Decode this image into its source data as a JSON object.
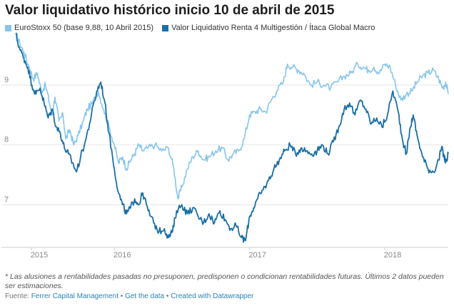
{
  "title": "Valor liquidativo histórico inicio 10 de abril de 2015",
  "note": "* Las alusiones a rentabilidades pasadas no presuponen, predisponen o condicionan rentabilidades futuras. Últimos 2 datos pueden ser estimaciones.",
  "source": {
    "label": "Fuente:",
    "name": "Ferrer Capital Management",
    "sep": "•",
    "get_data": "Get the data",
    "created": "Created with Datawrapper"
  },
  "chart_data": {
    "type": "line",
    "grid": "horizontal",
    "legend_position": "top-left",
    "ylim": [
      6.3,
      9.8
    ],
    "y_ticks": [
      7,
      8,
      9
    ],
    "x_ticks": [
      {
        "label": "2015",
        "x": 2015.25
      },
      {
        "label": "2016",
        "x": 2016.0
      },
      {
        "label": "2017",
        "x": 2017.0
      },
      {
        "label": "2018",
        "x": 2018.0
      }
    ],
    "xlim": [
      2015.27,
      2018.47
    ],
    "series": [
      {
        "name": "EuroStoxx 50 (base 9,88, 10 Abril 2015)",
        "color": "#86c5ec",
        "points": [
          [
            2015.27,
            9.85
          ],
          [
            2015.3,
            9.7
          ],
          [
            2015.33,
            9.55
          ],
          [
            2015.37,
            9.3
          ],
          [
            2015.4,
            9.1
          ],
          [
            2015.43,
            9.2
          ],
          [
            2015.46,
            8.9
          ],
          [
            2015.49,
            9.0
          ],
          [
            2015.52,
            8.7
          ],
          [
            2015.54,
            8.5
          ],
          [
            2015.56,
            8.8
          ],
          [
            2015.59,
            8.4
          ],
          [
            2015.62,
            8.5
          ],
          [
            2015.64,
            8.1
          ],
          [
            2015.67,
            8.25
          ],
          [
            2015.7,
            8.0
          ],
          [
            2015.73,
            8.15
          ],
          [
            2015.77,
            8.4
          ],
          [
            2015.8,
            8.6
          ],
          [
            2015.84,
            8.7
          ],
          [
            2015.88,
            8.9
          ],
          [
            2015.92,
            8.6
          ],
          [
            2015.96,
            8.3
          ],
          [
            2016.0,
            8.0
          ],
          [
            2016.03,
            7.7
          ],
          [
            2016.06,
            7.8
          ],
          [
            2016.09,
            7.6
          ],
          [
            2016.12,
            7.75
          ],
          [
            2016.15,
            7.85
          ],
          [
            2016.18,
            8.0
          ],
          [
            2016.21,
            7.9
          ],
          [
            2016.25,
            7.95
          ],
          [
            2016.3,
            8.0
          ],
          [
            2016.35,
            7.9
          ],
          [
            2016.4,
            7.95
          ],
          [
            2016.44,
            7.6
          ],
          [
            2016.47,
            7.1
          ],
          [
            2016.5,
            7.3
          ],
          [
            2016.54,
            7.6
          ],
          [
            2016.58,
            7.8
          ],
          [
            2016.62,
            7.9
          ],
          [
            2016.66,
            7.75
          ],
          [
            2016.7,
            7.8
          ],
          [
            2016.75,
            7.9
          ],
          [
            2016.8,
            7.95
          ],
          [
            2016.84,
            7.75
          ],
          [
            2016.88,
            7.85
          ],
          [
            2016.92,
            7.9
          ],
          [
            2016.96,
            8.1
          ],
          [
            2017.0,
            8.5
          ],
          [
            2017.04,
            8.55
          ],
          [
            2017.08,
            8.6
          ],
          [
            2017.12,
            8.55
          ],
          [
            2017.16,
            8.75
          ],
          [
            2017.2,
            8.9
          ],
          [
            2017.25,
            9.05
          ],
          [
            2017.28,
            9.35
          ],
          [
            2017.32,
            9.3
          ],
          [
            2017.36,
            9.25
          ],
          [
            2017.4,
            9.2
          ],
          [
            2017.45,
            9.0
          ],
          [
            2017.5,
            9.05
          ],
          [
            2017.55,
            9.0
          ],
          [
            2017.6,
            8.95
          ],
          [
            2017.65,
            9.05
          ],
          [
            2017.7,
            9.15
          ],
          [
            2017.75,
            9.2
          ],
          [
            2017.8,
            9.35
          ],
          [
            2017.84,
            9.3
          ],
          [
            2017.88,
            9.25
          ],
          [
            2017.92,
            9.3
          ],
          [
            2017.96,
            9.2
          ],
          [
            2018.0,
            9.35
          ],
          [
            2018.04,
            9.3
          ],
          [
            2018.08,
            9.0
          ],
          [
            2018.12,
            8.75
          ],
          [
            2018.16,
            8.85
          ],
          [
            2018.2,
            8.9
          ],
          [
            2018.24,
            9.05
          ],
          [
            2018.28,
            9.15
          ],
          [
            2018.32,
            9.2
          ],
          [
            2018.36,
            9.25
          ],
          [
            2018.4,
            9.1
          ],
          [
            2018.43,
            8.95
          ],
          [
            2018.45,
            9.05
          ],
          [
            2018.47,
            8.85
          ]
        ]
      },
      {
        "name": "Valor Liquidativo Renta 4 Multigestión / Ítaca Global Macro",
        "color": "#1a6fa6",
        "points": [
          [
            2015.27,
            9.85
          ],
          [
            2015.3,
            9.6
          ],
          [
            2015.33,
            9.45
          ],
          [
            2015.36,
            9.3
          ],
          [
            2015.39,
            9.0
          ],
          [
            2015.42,
            8.85
          ],
          [
            2015.45,
            8.95
          ],
          [
            2015.48,
            8.7
          ],
          [
            2015.51,
            8.45
          ],
          [
            2015.54,
            8.6
          ],
          [
            2015.57,
            8.3
          ],
          [
            2015.6,
            8.2
          ],
          [
            2015.63,
            7.95
          ],
          [
            2015.66,
            7.85
          ],
          [
            2015.69,
            7.7
          ],
          [
            2015.72,
            7.55
          ],
          [
            2015.75,
            7.8
          ],
          [
            2015.79,
            8.1
          ],
          [
            2015.83,
            8.5
          ],
          [
            2015.87,
            8.9
          ],
          [
            2015.9,
            9.05
          ],
          [
            2015.93,
            8.7
          ],
          [
            2015.96,
            8.2
          ],
          [
            2016.0,
            7.6
          ],
          [
            2016.03,
            7.2
          ],
          [
            2016.06,
            7.0
          ],
          [
            2016.09,
            6.85
          ],
          [
            2016.12,
            6.95
          ],
          [
            2016.15,
            7.1
          ],
          [
            2016.18,
            7.0
          ],
          [
            2016.21,
            7.2
          ],
          [
            2016.25,
            6.9
          ],
          [
            2016.29,
            6.7
          ],
          [
            2016.33,
            6.55
          ],
          [
            2016.37,
            6.6
          ],
          [
            2016.4,
            6.45
          ],
          [
            2016.43,
            6.55
          ],
          [
            2016.46,
            6.9
          ],
          [
            2016.5,
            7.0
          ],
          [
            2016.54,
            6.85
          ],
          [
            2016.58,
            6.95
          ],
          [
            2016.62,
            6.8
          ],
          [
            2016.66,
            6.7
          ],
          [
            2016.7,
            6.85
          ],
          [
            2016.74,
            6.7
          ],
          [
            2016.78,
            6.9
          ],
          [
            2016.82,
            6.75
          ],
          [
            2016.86,
            6.6
          ],
          [
            2016.9,
            6.65
          ],
          [
            2016.94,
            6.45
          ],
          [
            2016.97,
            6.4
          ],
          [
            2017.0,
            6.8
          ],
          [
            2017.03,
            6.95
          ],
          [
            2017.06,
            7.1
          ],
          [
            2017.1,
            7.25
          ],
          [
            2017.14,
            7.4
          ],
          [
            2017.18,
            7.6
          ],
          [
            2017.22,
            7.75
          ],
          [
            2017.26,
            7.9
          ],
          [
            2017.3,
            8.0
          ],
          [
            2017.34,
            7.85
          ],
          [
            2017.38,
            7.95
          ],
          [
            2017.42,
            7.9
          ],
          [
            2017.46,
            7.85
          ],
          [
            2017.5,
            7.9
          ],
          [
            2017.54,
            8.0
          ],
          [
            2017.58,
            7.85
          ],
          [
            2017.62,
            8.05
          ],
          [
            2017.66,
            8.3
          ],
          [
            2017.7,
            8.6
          ],
          [
            2017.74,
            8.7
          ],
          [
            2017.78,
            8.5
          ],
          [
            2017.82,
            8.75
          ],
          [
            2017.86,
            8.6
          ],
          [
            2017.9,
            8.35
          ],
          [
            2017.94,
            8.45
          ],
          [
            2017.98,
            8.3
          ],
          [
            2018.02,
            8.5
          ],
          [
            2018.06,
            8.9
          ],
          [
            2018.1,
            8.55
          ],
          [
            2018.13,
            8.1
          ],
          [
            2018.16,
            7.85
          ],
          [
            2018.19,
            8.3
          ],
          [
            2018.21,
            8.5
          ],
          [
            2018.24,
            8.15
          ],
          [
            2018.28,
            7.8
          ],
          [
            2018.32,
            7.6
          ],
          [
            2018.36,
            7.55
          ],
          [
            2018.4,
            7.75
          ],
          [
            2018.42,
            7.95
          ],
          [
            2018.44,
            7.8
          ],
          [
            2018.45,
            7.7
          ],
          [
            2018.47,
            7.85
          ]
        ]
      }
    ]
  }
}
